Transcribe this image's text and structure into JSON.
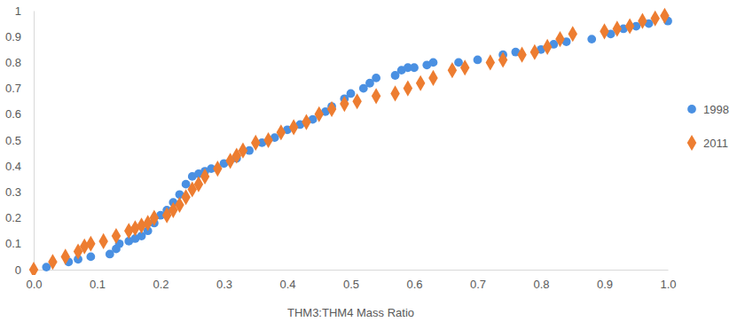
{
  "chart_data": {
    "type": "scatter",
    "x_label": "THM3:THM4 Mass Ratio",
    "xlim": [
      0,
      1
    ],
    "ylim": [
      0,
      1
    ],
    "xticks": [
      {
        "value": 0,
        "label": "0.0"
      },
      0.1,
      0.2,
      0.3,
      0.4,
      0.5,
      0.6,
      0.7,
      0.8,
      0.9,
      {
        "value": 1,
        "label": "1.0"
      }
    ],
    "yticks": [
      0,
      0.1,
      0.2,
      0.3,
      0.4,
      0.5,
      0.6,
      0.7,
      0.8,
      0.9,
      1
    ],
    "grid": false,
    "legend": "right",
    "series": [
      {
        "name": "1998",
        "color": "#4a90e2",
        "marker": "circle",
        "x": [
          0.02,
          0.055,
          0.07,
          0.09,
          0.12,
          0.13,
          0.135,
          0.15,
          0.16,
          0.17,
          0.18,
          0.19,
          0.2,
          0.21,
          0.22,
          0.23,
          0.24,
          0.25,
          0.26,
          0.27,
          0.28,
          0.3,
          0.32,
          0.34,
          0.36,
          0.38,
          0.4,
          0.42,
          0.44,
          0.46,
          0.47,
          0.49,
          0.5,
          0.52,
          0.53,
          0.54,
          0.57,
          0.58,
          0.59,
          0.6,
          0.62,
          0.63,
          0.67,
          0.7,
          0.74,
          0.76,
          0.8,
          0.82,
          0.84,
          0.88,
          0.91,
          0.93,
          0.95,
          0.97,
          1.0
        ],
        "values": [
          0.01,
          0.03,
          0.04,
          0.05,
          0.06,
          0.08,
          0.1,
          0.11,
          0.12,
          0.13,
          0.15,
          0.18,
          0.21,
          0.23,
          0.26,
          0.29,
          0.33,
          0.36,
          0.37,
          0.38,
          0.39,
          0.41,
          0.43,
          0.46,
          0.49,
          0.51,
          0.54,
          0.56,
          0.58,
          0.61,
          0.63,
          0.66,
          0.68,
          0.7,
          0.72,
          0.74,
          0.75,
          0.77,
          0.78,
          0.78,
          0.79,
          0.8,
          0.8,
          0.81,
          0.83,
          0.84,
          0.85,
          0.87,
          0.88,
          0.89,
          0.91,
          0.93,
          0.94,
          0.95,
          0.96
        ]
      },
      {
        "name": "2011",
        "color": "#ed7d31",
        "marker": "diamond",
        "x": [
          0,
          0.03,
          0.05,
          0.07,
          0.08,
          0.09,
          0.11,
          0.13,
          0.15,
          0.16,
          0.17,
          0.18,
          0.19,
          0.21,
          0.22,
          0.23,
          0.24,
          0.25,
          0.26,
          0.27,
          0.29,
          0.31,
          0.32,
          0.33,
          0.35,
          0.37,
          0.39,
          0.41,
          0.43,
          0.45,
          0.47,
          0.49,
          0.51,
          0.54,
          0.57,
          0.59,
          0.61,
          0.63,
          0.66,
          0.68,
          0.72,
          0.74,
          0.77,
          0.79,
          0.81,
          0.83,
          0.85,
          0.9,
          0.92,
          0.94,
          0.96,
          0.98,
          0.995
        ],
        "values": [
          0,
          0.03,
          0.05,
          0.07,
          0.09,
          0.1,
          0.11,
          0.13,
          0.15,
          0.16,
          0.17,
          0.18,
          0.2,
          0.21,
          0.23,
          0.25,
          0.28,
          0.31,
          0.33,
          0.36,
          0.39,
          0.42,
          0.44,
          0.46,
          0.49,
          0.5,
          0.53,
          0.55,
          0.57,
          0.6,
          0.62,
          0.64,
          0.65,
          0.67,
          0.68,
          0.7,
          0.72,
          0.74,
          0.77,
          0.78,
          0.8,
          0.81,
          0.83,
          0.84,
          0.86,
          0.89,
          0.91,
          0.92,
          0.93,
          0.94,
          0.96,
          0.97,
          0.98
        ]
      }
    ]
  }
}
